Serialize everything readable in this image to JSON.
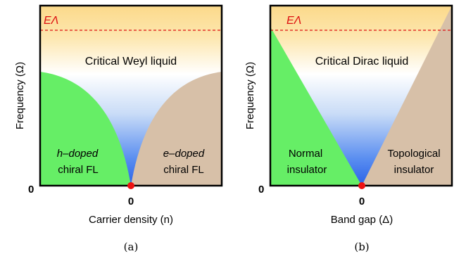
{
  "panels": [
    {
      "energy_cutoff_label": "EΛ",
      "region_top_label": "Critical Weyl liquid",
      "left_region_label": [
        "h–doped",
        "chiral FL"
      ],
      "right_region_label": [
        "e–doped",
        "chiral FL"
      ],
      "y_axis_label": "Frequency (Ω)",
      "y_origin_label": "0",
      "x_tick_label": "0",
      "x_axis_label": "Carrier density (n)",
      "caption": "(a)"
    },
    {
      "energy_cutoff_label": "EΛ",
      "region_top_label": "Critical Dirac liquid",
      "left_region_label": [
        "Normal",
        "insulator"
      ],
      "right_region_label": [
        "Topological",
        "insulator"
      ],
      "y_axis_label": "Frequency (Ω)",
      "y_origin_label": "0",
      "x_tick_label": "0",
      "x_axis_label": "Band gap (Δ)",
      "caption": "(b)"
    }
  ],
  "colors": {
    "top_gradient": [
      "#fbdc8e",
      "#ffffff",
      "#2f6ff0"
    ],
    "left_region": "#66ee66",
    "right_region": "#d7c0a8",
    "cutoff_line": "#dd1111",
    "critical_point": "#ee1111",
    "frame": "#000000"
  }
}
